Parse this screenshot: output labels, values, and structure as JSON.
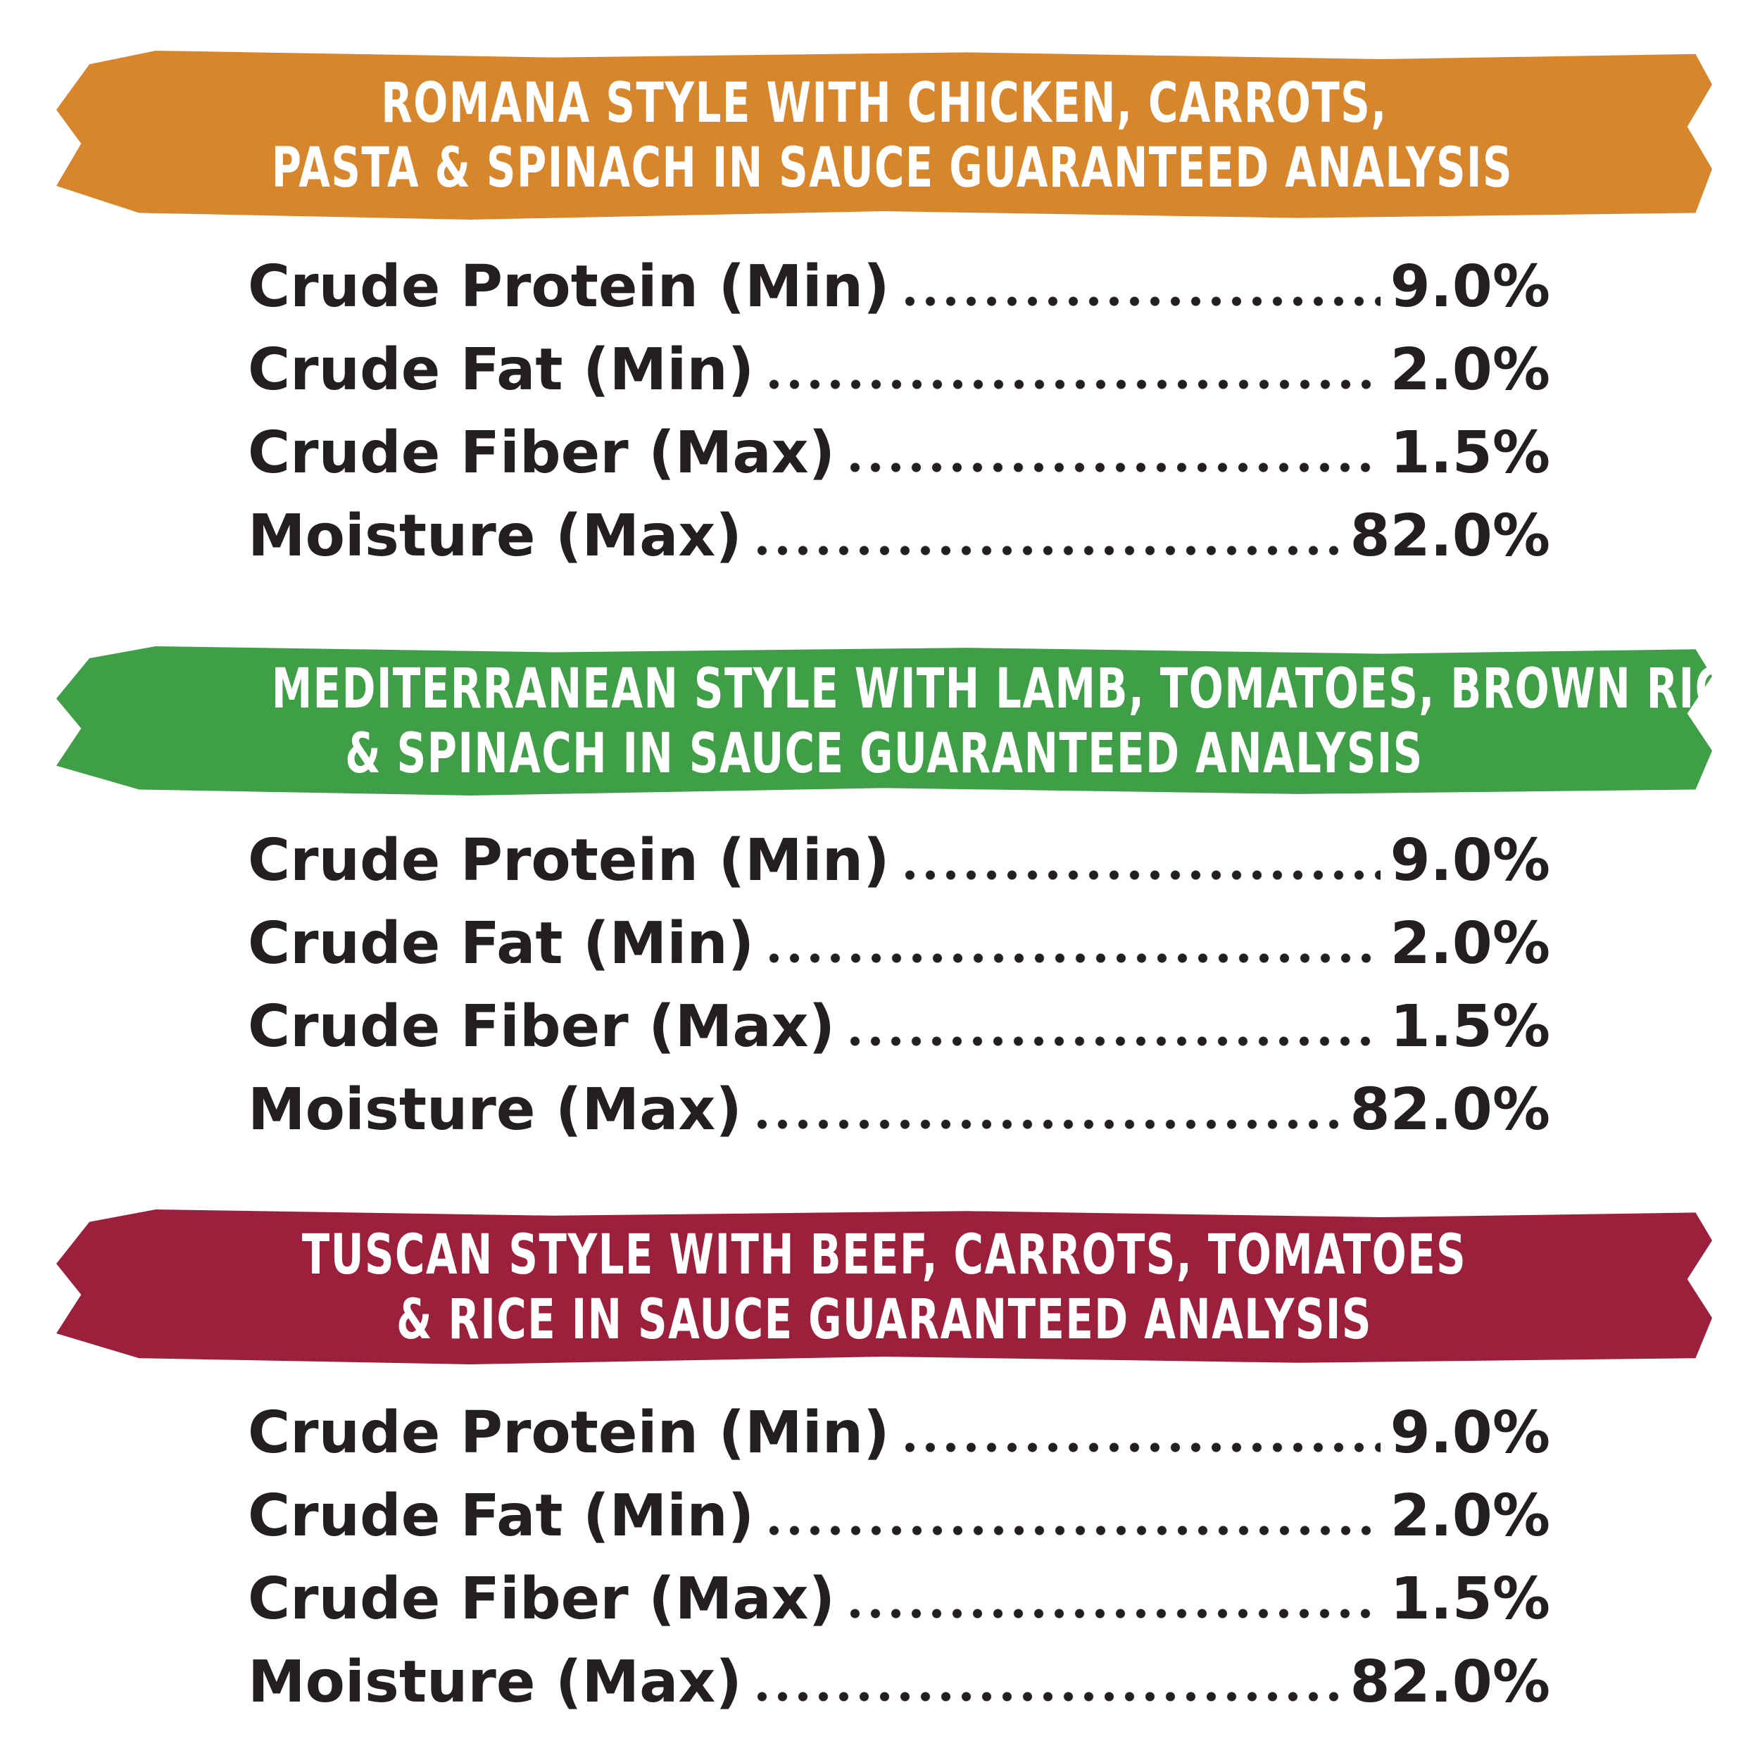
{
  "sections": [
    {
      "title": [
        "ROMANA STYLE WITH CHICKEN, CARROTS,",
        "PASTA & SPINACH IN SAUCE GUARANTEED ANALYSIS"
      ],
      "color": "#d8862b",
      "rows": [
        [
          "Crude Protein (Min)",
          "9.0%"
        ],
        [
          "Crude Fat (Min)",
          "2.0%"
        ],
        [
          "Crude Fiber (Max)",
          "1.5%"
        ],
        [
          "Moisture (Max)",
          "82.0%"
        ]
      ]
    },
    {
      "title": [
        "MEDITERRANEAN STYLE WITH LAMB, TOMATOES, BROWN RICE",
        "& SPINACH IN SAUCE GUARANTEED ANALYSIS"
      ],
      "color": "#3f9f47",
      "rows": [
        [
          "Crude Protein (Min)",
          "9.0%"
        ],
        [
          "Crude Fat (Min)",
          "2.0%"
        ],
        [
          "Crude Fiber (Max)",
          "1.5%"
        ],
        [
          "Moisture (Max)",
          "82.0%"
        ]
      ]
    },
    {
      "title": [
        "TUSCAN STYLE WITH BEEF, CARROTS, TOMATOES",
        "& RICE IN SAUCE GUARANTEED ANALYSIS"
      ],
      "color": "#9c1f3b",
      "rows": [
        [
          "Crude Protein (Min)",
          "9.0%"
        ],
        [
          "Crude Fat (Min)",
          "2.0%"
        ],
        [
          "Crude Fiber (Max)",
          "1.5%"
        ],
        [
          "Moisture (Max)",
          "82.0%"
        ]
      ]
    }
  ]
}
